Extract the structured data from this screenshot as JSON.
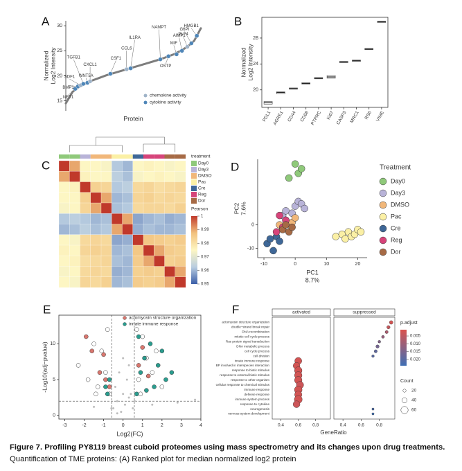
{
  "chart_data": [
    {
      "panel": "A",
      "type": "line",
      "ylabel": [
        "Normalized",
        "Log2 Intensity"
      ],
      "xlabel": "Protein",
      "xlim": [
        0,
        100
      ],
      "ylim": [
        13,
        31
      ],
      "yticks": [
        15,
        20,
        25,
        30
      ],
      "x": [
        0,
        5,
        10,
        15,
        20,
        25,
        30,
        35,
        40,
        45,
        50,
        55,
        60,
        65,
        70,
        75,
        80,
        85,
        90,
        95,
        100
      ],
      "values": [
        14.5,
        16.8,
        17.8,
        18.5,
        19.1,
        19.6,
        20.1,
        20.5,
        20.9,
        21.3,
        21.7,
        22.1,
        22.5,
        22.9,
        23.3,
        23.8,
        24.3,
        25,
        25.8,
        27,
        29.5
      ],
      "legend": [
        {
          "name": "chemokine activity",
          "color": "#9fb3c8"
        },
        {
          "name": "cytokine activity",
          "color": "#4f86b8"
        }
      ],
      "points": [
        {
          "label": "NET1",
          "x": 7,
          "y": 17.4,
          "group": 1
        },
        {
          "label": "BMP1",
          "x": 9,
          "y": 17.9,
          "group": 1
        },
        {
          "label": "SDF1",
          "x": 11,
          "y": 18.1,
          "group": 0
        },
        {
          "label": "TGFB1",
          "x": 13,
          "y": 18.4,
          "group": 1
        },
        {
          "label": "WNT5A",
          "x": 16,
          "y": 18.6,
          "group": 1
        },
        {
          "label": "CXCL1",
          "x": 18,
          "y": 18.9,
          "group": 0
        },
        {
          "label": "CSF1",
          "x": 33,
          "y": 20.4,
          "group": 1
        },
        {
          "label": "CCL6",
          "x": 45,
          "y": 21.3,
          "group": 0
        },
        {
          "label": "IL1RA",
          "x": 48,
          "y": 21.5,
          "group": 1
        },
        {
          "label": "NAMPT",
          "x": 70,
          "y": 23.3,
          "group": 1
        },
        {
          "label": "OSTP",
          "x": 76,
          "y": 23.9,
          "group": 1
        },
        {
          "label": "MIF",
          "x": 82,
          "y": 24.3,
          "group": 1
        },
        {
          "label": "AIMP1",
          "x": 86,
          "y": 25,
          "group": 1
        },
        {
          "label": "PLF4",
          "x": 90,
          "y": 25.8,
          "group": 0
        },
        {
          "label": "G6PI",
          "x": 93,
          "y": 26.5,
          "group": 1
        },
        {
          "label": "HMGB1",
          "x": 97,
          "y": 28,
          "group": 1
        }
      ]
    },
    {
      "panel": "B",
      "type": "box",
      "ylabel": [
        "Normalized",
        "Log2 Intensity"
      ],
      "categories": [
        "PDL1",
        "AGRE1",
        "CD44",
        "CD68",
        "PTPRC",
        "Ki67",
        "CASP3",
        "MRC1",
        "RS6",
        "VIME"
      ],
      "values": [
        18,
        19.6,
        20.2,
        21,
        21.8,
        22,
        24.3,
        24.5,
        26.3,
        30.5
      ],
      "q1": [
        17.8,
        19.4,
        20.1,
        20.9,
        21.7,
        21.8,
        24.2,
        24.4,
        26.2,
        30.4
      ],
      "q3": [
        18.2,
        19.7,
        20.3,
        21.1,
        21.9,
        22.2,
        24.4,
        24.6,
        26.4,
        30.6
      ],
      "ylim": [
        17.3,
        31.2
      ],
      "yticks": [
        20,
        24,
        28
      ]
    },
    {
      "panel": "C",
      "type": "heatmap",
      "legend_title": "treatment",
      "legend": [
        {
          "name": "Day0",
          "color": "#8fc97a"
        },
        {
          "name": "Day3",
          "color": "#b8b3d8"
        },
        {
          "name": "DMSO",
          "color": "#f1b77a"
        },
        {
          "name": "Pac",
          "color": "#fbf0a5"
        },
        {
          "name": "Cre",
          "color": "#3e6797"
        },
        {
          "name": "Reg",
          "color": "#d6447a"
        },
        {
          "name": "Dor",
          "color": "#a66a45"
        }
      ],
      "groups": [
        0,
        0,
        1,
        2,
        2,
        3,
        3,
        4,
        5,
        5,
        6,
        6
      ],
      "colorbar_title": "Pearson",
      "clim": [
        0.95,
        1
      ],
      "colormap": [
        "#3b5ea8",
        "#b9cde0",
        "#fdf6c3",
        "#f2c27e",
        "#c0392b"
      ],
      "colorbar_ticks": [
        1,
        0.99,
        0.98,
        0.97,
        0.96,
        0.95
      ],
      "matrix": [
        [
          1,
          0.99,
          0.975,
          0.975,
          0.974,
          0.962,
          0.96,
          0.975,
          0.976,
          0.975,
          0.974,
          0.975
        ],
        [
          0.99,
          1,
          0.976,
          0.975,
          0.975,
          0.963,
          0.961,
          0.974,
          0.975,
          0.976,
          0.975,
          0.974
        ],
        [
          0.975,
          0.976,
          1,
          0.984,
          0.983,
          0.962,
          0.963,
          0.982,
          0.983,
          0.981,
          0.982,
          0.983
        ],
        [
          0.975,
          0.975,
          0.984,
          1,
          0.99,
          0.96,
          0.961,
          0.983,
          0.984,
          0.982,
          0.983,
          0.982
        ],
        [
          0.974,
          0.975,
          0.983,
          0.99,
          1,
          0.961,
          0.962,
          0.982,
          0.983,
          0.983,
          0.982,
          0.984
        ],
        [
          0.962,
          0.963,
          0.962,
          0.96,
          0.961,
          1,
          0.99,
          0.958,
          0.96,
          0.961,
          0.959,
          0.96
        ],
        [
          0.96,
          0.961,
          0.963,
          0.961,
          0.962,
          0.99,
          1,
          0.959,
          0.961,
          0.96,
          0.96,
          0.961
        ],
        [
          0.975,
          0.974,
          0.982,
          0.983,
          0.982,
          0.958,
          0.959,
          1,
          0.986,
          0.985,
          0.984,
          0.985
        ],
        [
          0.976,
          0.975,
          0.983,
          0.984,
          0.983,
          0.96,
          0.961,
          0.986,
          1,
          0.99,
          0.985,
          0.984
        ],
        [
          0.975,
          0.976,
          0.981,
          0.982,
          0.983,
          0.961,
          0.96,
          0.985,
          0.99,
          1,
          0.984,
          0.985
        ],
        [
          0.974,
          0.975,
          0.982,
          0.983,
          0.982,
          0.959,
          0.96,
          0.984,
          0.985,
          0.984,
          1,
          0.99
        ],
        [
          0.975,
          0.974,
          0.983,
          0.982,
          0.984,
          0.96,
          0.961,
          0.985,
          0.984,
          0.985,
          0.99,
          1
        ]
      ]
    },
    {
      "panel": "D",
      "type": "scatter",
      "xlabel": [
        "PC1",
        "8.7%"
      ],
      "ylabel": [
        "PC2",
        "7.6%"
      ],
      "legend_title": "Treatment",
      "xlim": [
        -12,
        23
      ],
      "ylim": [
        -14,
        28
      ],
      "xticks": [
        -10,
        0,
        10,
        20
      ],
      "yticks": [
        -10,
        0
      ],
      "series": [
        {
          "name": "Day0",
          "color": "#8fc97a",
          "x": [
            -2,
            0,
            1,
            2
          ],
          "values": [
            20,
            26,
            22,
            24
          ]
        },
        {
          "name": "Day3",
          "color": "#b8b3d8",
          "x": [
            -4,
            -3,
            -1,
            0,
            1,
            2,
            3
          ],
          "values": [
            4,
            6,
            5,
            8,
            10,
            9,
            7
          ]
        },
        {
          "name": "DMSO",
          "color": "#f1b77a",
          "x": [
            -5,
            -3,
            -1,
            0
          ],
          "values": [
            0,
            2,
            1,
            3
          ]
        },
        {
          "name": "Pac",
          "color": "#fbf0a5",
          "x": [
            13,
            15,
            16,
            17,
            18,
            19,
            20,
            21
          ],
          "values": [
            -5,
            -4,
            -6,
            -3,
            -5,
            -4,
            -2,
            -3
          ]
        },
        {
          "name": "Cre",
          "color": "#3e6797",
          "x": [
            -9,
            -8,
            -7,
            -6,
            -5
          ],
          "values": [
            -8,
            -6,
            -11,
            -5,
            -7
          ]
        },
        {
          "name": "Reg",
          "color": "#d6447a",
          "x": [
            -6,
            -5,
            -4,
            -3
          ],
          "values": [
            -3,
            4,
            -1,
            2
          ]
        },
        {
          "name": "Dor",
          "color": "#a66a45",
          "x": [
            -4,
            -3,
            -2,
            -1
          ],
          "values": [
            -2,
            0,
            -3,
            -1
          ]
        }
      ]
    },
    {
      "panel": "E",
      "type": "scatter",
      "xlabel": [
        "Log2(FC)"
      ],
      "ylabel": [
        "-Log10(adj−pvalue)"
      ],
      "xlim": [
        -3.3,
        4
      ],
      "ylim": [
        -0.5,
        14
      ],
      "xticks": [
        -3,
        -2,
        -1,
        0,
        1,
        2,
        3,
        4
      ],
      "yticks": [
        0,
        5,
        10
      ],
      "vlines": [
        -0.58,
        0.58
      ],
      "hlines": [
        2
      ],
      "background": {
        "color": "#bdbdbd",
        "x": [
          -0.5,
          -0.3,
          -0.1,
          0,
          0.1,
          0.3,
          0.5,
          -0.4,
          0.2,
          0.4,
          -0.2,
          0.6,
          -0.6,
          0,
          0.3,
          -0.3,
          -1.5,
          1.5,
          2.8,
          3.7
        ],
        "values": [
          1,
          2,
          0.5,
          3,
          1.5,
          2.5,
          1,
          4,
          5,
          3,
          6,
          2,
          1,
          8,
          7,
          0.3,
          1.2,
          1.5,
          1.8,
          2.2
        ]
      },
      "open": {
        "color": "#ffffff",
        "x": [
          -2.3,
          -1.8,
          -1.5,
          -1.3,
          -1.1,
          -0.9,
          -0.8,
          -0.7,
          0.7,
          0.8,
          1,
          1.2,
          1.5,
          1.7,
          2,
          0.9,
          -1.4
        ],
        "values": [
          7,
          5,
          10,
          4,
          9,
          6,
          12,
          3,
          12,
          5,
          11,
          8,
          6,
          9,
          4,
          3,
          3
        ]
      },
      "series": [
        {
          "name": "actomyosin structure organization",
          "color": "#d9776f",
          "x": [
            -1.9,
            -1.6,
            -1.2,
            -1,
            -0.9,
            -0.7,
            0.8,
            1,
            1.3
          ],
          "values": [
            11,
            9,
            6,
            8.5,
            5,
            4,
            7,
            9.5,
            5.5
          ]
        },
        {
          "name": "innate immune response",
          "color": "#2a9d8f",
          "x": [
            -0.9,
            -0.8,
            -0.7,
            0.7,
            0.9,
            1.1,
            1.4,
            1.6,
            1.8,
            2,
            2.2,
            2.5,
            1.2,
            0.8
          ],
          "values": [
            4,
            3,
            5,
            3,
            6,
            8,
            10,
            4,
            7,
            9,
            5,
            6,
            3.5,
            11
          ]
        }
      ]
    },
    {
      "panel": "F",
      "type": "dot",
      "xlabel": "GeneRatio",
      "xlim": [
        0.3,
        0.97
      ],
      "xticks": [
        0.4,
        0.6,
        0.8
      ],
      "categories": [
        "actomyosin structure organization",
        "double−strand break repair",
        "DNA recombination",
        "mitotic cell cycle process",
        "Ras protein signal transduction",
        "DNA metabolic process",
        "cell cycle process",
        "cell division",
        "innate immune response",
        "BP involved in interspecies interaction",
        "response to biotic stimulus",
        "response to external biotic stimulus",
        "response to other organism",
        "cellular response to chemical stimulus",
        "immune response",
        "defense response",
        "immune system process",
        "response to cytokine",
        "neurogenesis",
        "nervous system development"
      ],
      "series": [
        {
          "name": "activated",
          "values": [
            null,
            null,
            null,
            null,
            null,
            null,
            null,
            null,
            0.6,
            0.58,
            0.6,
            0.6,
            0.6,
            0.62,
            0.6,
            0.6,
            0.6,
            0.58,
            null,
            null
          ],
          "count": [
            null,
            null,
            null,
            null,
            null,
            null,
            null,
            null,
            58,
            55,
            62,
            62,
            62,
            60,
            64,
            60,
            66,
            56,
            null,
            null
          ],
          "padj": [
            null,
            null,
            null,
            null,
            null,
            null,
            null,
            null,
            0.002,
            0.002,
            0.002,
            0.002,
            0.002,
            0.003,
            0.002,
            0.002,
            0.002,
            0.003,
            null,
            null
          ]
        },
        {
          "name": "suppressed",
          "values": [
            0.93,
            0.9,
            0.88,
            0.84,
            0.8,
            0.78,
            0.76,
            0.73,
            null,
            null,
            null,
            null,
            null,
            null,
            null,
            null,
            null,
            null,
            0.73,
            0.73
          ],
          "count": [
            25,
            22,
            20,
            18,
            16,
            22,
            20,
            15,
            null,
            null,
            null,
            null,
            null,
            null,
            null,
            null,
            null,
            null,
            12,
            12
          ],
          "padj": [
            0.002,
            0.004,
            0.008,
            0.011,
            0.014,
            0.016,
            0.019,
            0.02,
            null,
            null,
            null,
            null,
            null,
            null,
            null,
            null,
            null,
            null,
            0.022,
            0.024
          ]
        }
      ],
      "padj_title": "p.adjust",
      "padj_lim": [
        0.001,
        0.024
      ],
      "padj_colors": [
        "#d9534f",
        "#3f6fb5"
      ],
      "padj_ticks": [
        0.005,
        {
          "value": 0.01,
          "label": "0.010"
        },
        0.015,
        {
          "value": 0.02,
          "label": "0.020"
        }
      ],
      "count_title": "Count",
      "count_lim": [
        10,
        70
      ],
      "count_ticks": [
        20,
        40,
        60
      ]
    }
  ],
  "caption": {
    "bold": "Figure 7. Profiling PY8119 breast cuboid proteomes using mass spectrometry and its changes upon drug treatments.",
    "text": " Quantification of TME proteins: (A) Ranked plot for median normalized log2 protein"
  }
}
